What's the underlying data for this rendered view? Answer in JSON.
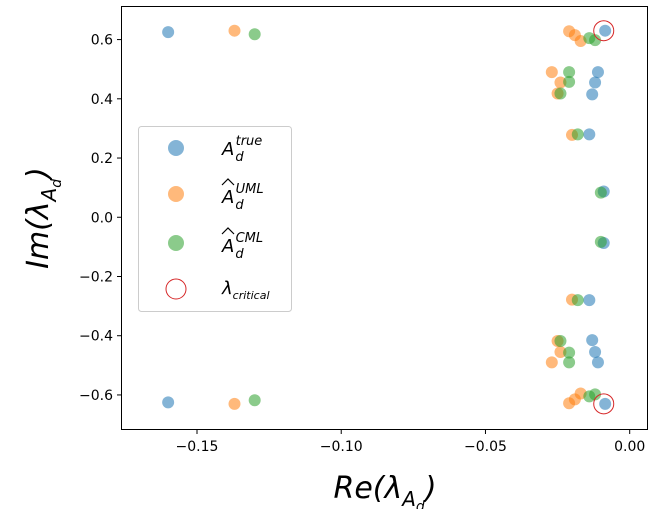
{
  "chart_data": {
    "type": "scatter",
    "xlabel": "Re(λ_{A_d})",
    "ylabel": "Im(λ_{A_d})",
    "xlim": [
      -0.176,
      0.006
    ],
    "ylim": [
      -0.715,
      0.71
    ],
    "x_ticks": [
      -0.15,
      -0.1,
      -0.05,
      0.0
    ],
    "x_tick_labels": [
      "−0.15",
      "−0.10",
      "−0.05",
      "0.00"
    ],
    "y_ticks": [
      -0.6,
      -0.4,
      -0.2,
      0.0,
      0.2,
      0.4,
      0.6
    ],
    "y_tick_labels": [
      "−0.6",
      "−0.4",
      "−0.2",
      "0.0",
      "0.2",
      "0.4",
      "0.6"
    ],
    "grid": false,
    "legend_position": "center-left",
    "series": [
      {
        "name": "A_d^{true}",
        "color": "#1f77b4",
        "marker": "filled-circle",
        "points": [
          [
            -0.16,
            0.625
          ],
          [
            -0.16,
            -0.625
          ],
          [
            -0.0085,
            0.63
          ],
          [
            -0.0085,
            -0.63
          ],
          [
            -0.011,
            0.49
          ],
          [
            -0.011,
            -0.49
          ],
          [
            -0.012,
            0.455
          ],
          [
            -0.012,
            -0.455
          ],
          [
            -0.013,
            0.415
          ],
          [
            -0.013,
            -0.415
          ],
          [
            -0.014,
            0.28
          ],
          [
            -0.014,
            -0.28
          ],
          [
            -0.009,
            0.087
          ],
          [
            -0.009,
            -0.087
          ]
        ]
      },
      {
        "name": "Â_d^{UML}",
        "color": "#ff7f0e",
        "marker": "filled-circle",
        "points": [
          [
            -0.137,
            0.63
          ],
          [
            -0.137,
            -0.63
          ],
          [
            -0.021,
            0.628
          ],
          [
            -0.021,
            -0.628
          ],
          [
            -0.019,
            0.615
          ],
          [
            -0.019,
            -0.615
          ],
          [
            -0.017,
            0.595
          ],
          [
            -0.017,
            -0.595
          ],
          [
            -0.027,
            0.49
          ],
          [
            -0.027,
            -0.49
          ],
          [
            -0.024,
            0.455
          ],
          [
            -0.024,
            -0.455
          ],
          [
            -0.025,
            0.418
          ],
          [
            -0.025,
            -0.418
          ],
          [
            -0.02,
            0.278
          ],
          [
            -0.02,
            -0.278
          ]
        ]
      },
      {
        "name": "Â_d^{CML}",
        "color": "#2ca02c",
        "marker": "filled-circle",
        "points": [
          [
            -0.13,
            0.618
          ],
          [
            -0.13,
            -0.618
          ],
          [
            -0.014,
            0.605
          ],
          [
            -0.014,
            -0.605
          ],
          [
            -0.012,
            0.598
          ],
          [
            -0.012,
            -0.598
          ],
          [
            -0.021,
            0.49
          ],
          [
            -0.021,
            -0.49
          ],
          [
            -0.021,
            0.457
          ],
          [
            -0.021,
            -0.457
          ],
          [
            -0.024,
            0.418
          ],
          [
            -0.024,
            -0.418
          ],
          [
            -0.018,
            0.28
          ],
          [
            -0.018,
            -0.28
          ],
          [
            -0.01,
            0.083
          ],
          [
            -0.01,
            -0.083
          ]
        ]
      },
      {
        "name": "λ_critical",
        "color": "#d62728",
        "marker": "open-circle",
        "points": [
          [
            -0.009,
            0.63
          ],
          [
            -0.009,
            -0.63
          ]
        ]
      }
    ]
  },
  "legend": {
    "true_base": "A",
    "true_sub": "d",
    "true_sup": "true",
    "uml_base": "A",
    "uml_sub": "d",
    "uml_sup": "UML",
    "cml_base": "A",
    "cml_sub": "d",
    "cml_sup": "CML",
    "crit_base": "λ",
    "crit_sub": "critical"
  },
  "axes": {
    "x_title_main": "Re(λ",
    "x_title_sub_A": "A",
    "x_title_sub_d": "d",
    "x_title_close": ")",
    "y_title_main": "Im(λ",
    "y_title_sub_A": "A",
    "y_title_sub_d": "d",
    "y_title_close": ")"
  }
}
